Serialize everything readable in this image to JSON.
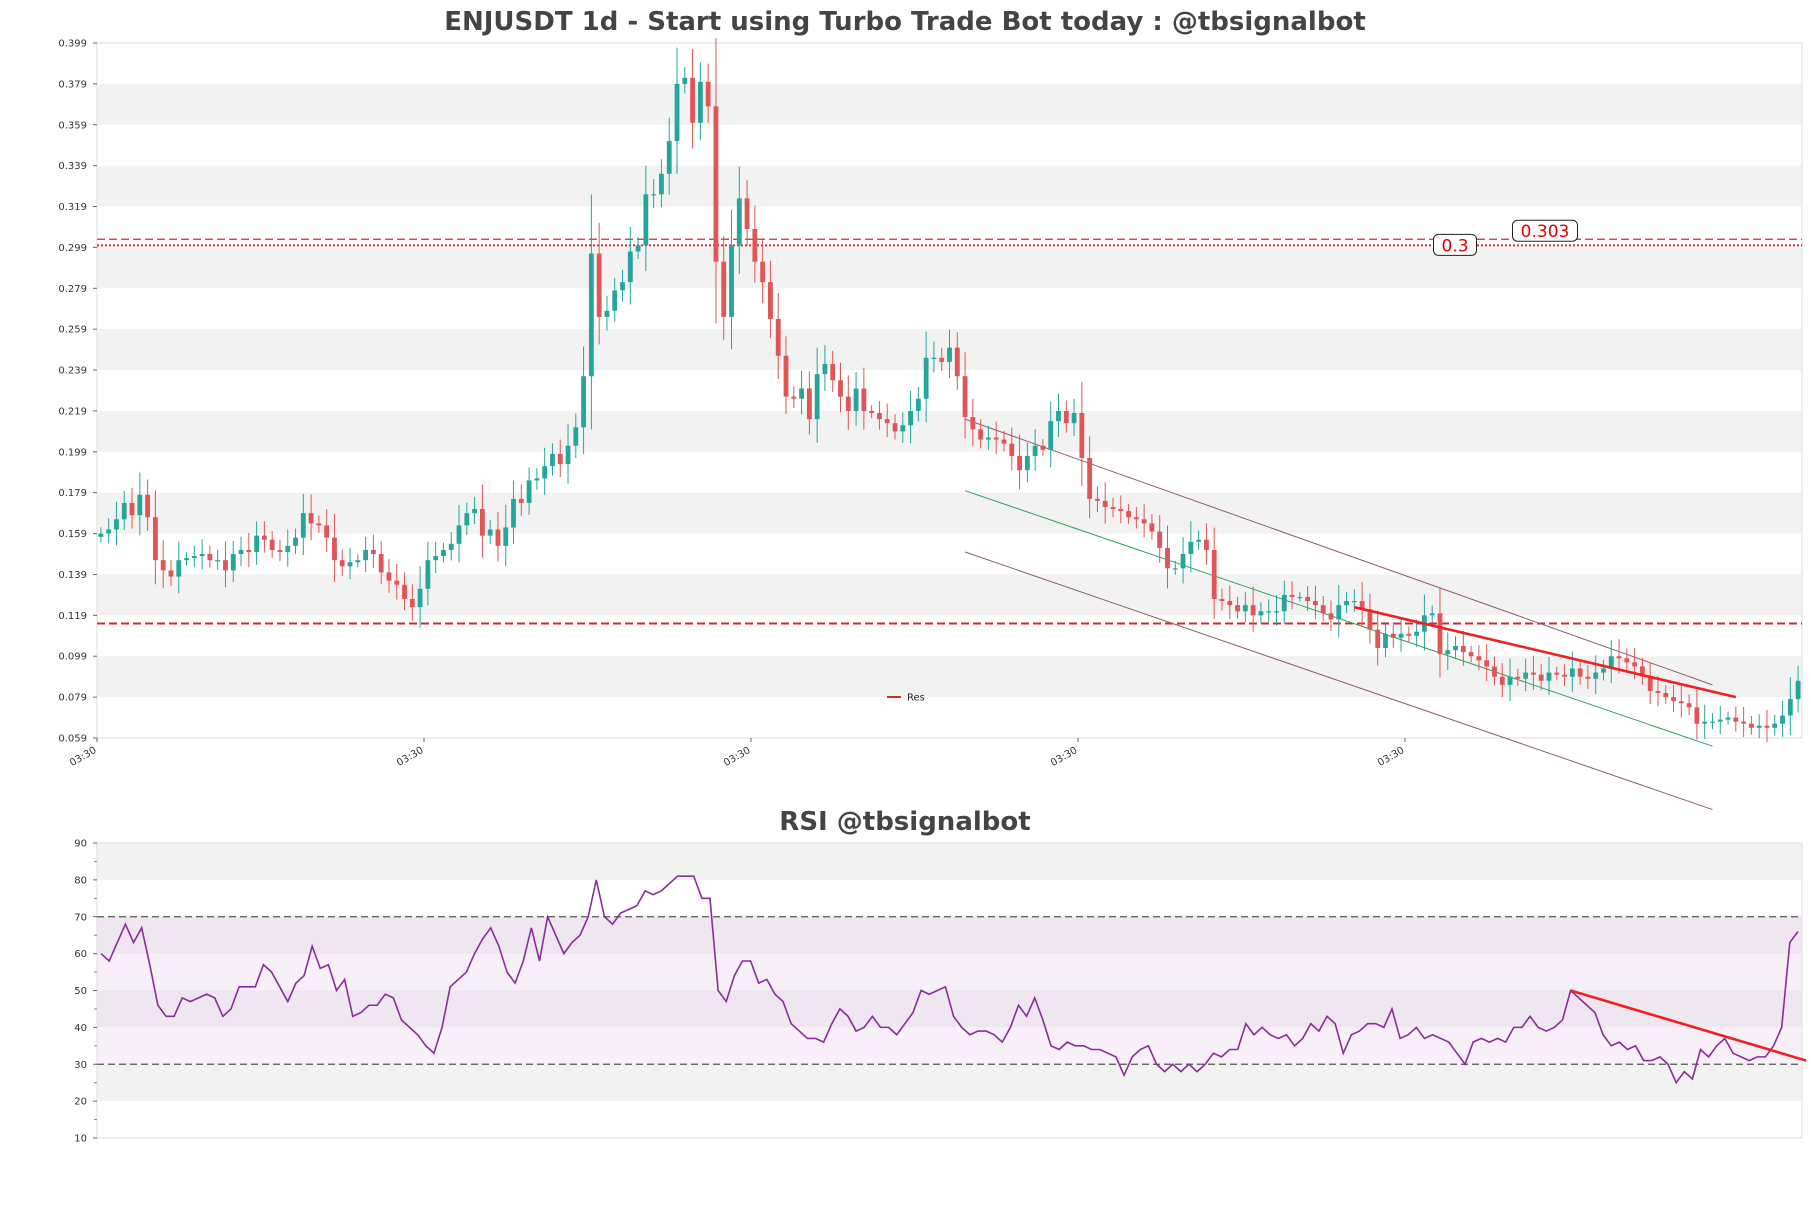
{
  "colors": {
    "up": "#26a69a",
    "down": "#e05555",
    "level": "#d62728",
    "channel": "#8c5f6e",
    "midline": "#2ca25f",
    "rsi": "#8a2c9c",
    "trend": "#ee2222",
    "band": "#f2f2f2"
  },
  "chart_data": [
    {
      "type": "candlestick",
      "title": "ENJUSDT 1d - Start using Turbo Trade Bot today : @tbsignalbot",
      "y_ticks": [
        "0.399",
        "0.379",
        "0.359",
        "0.339",
        "0.319",
        "0.299",
        "0.279",
        "0.259",
        "0.239",
        "0.219",
        "0.199",
        "0.179",
        "0.159",
        "0.139",
        "0.119",
        "0.099",
        "0.079",
        "0.059"
      ],
      "ylim": [
        0.059,
        0.399
      ],
      "x_tick_labels": [
        "03:30",
        "03:30",
        "03:30",
        "03:30",
        "03:30"
      ],
      "x_tick_positions": [
        0,
        42,
        84,
        126,
        168
      ],
      "bars": 211,
      "closes": [
        0.159,
        0.161,
        0.166,
        0.174,
        0.168,
        0.178,
        0.167,
        0.146,
        0.141,
        0.138,
        0.146,
        0.147,
        0.148,
        0.149,
        0.146,
        0.146,
        0.141,
        0.149,
        0.151,
        0.15,
        0.158,
        0.156,
        0.151,
        0.15,
        0.153,
        0.157,
        0.169,
        0.164,
        0.163,
        0.157,
        0.146,
        0.143,
        0.145,
        0.146,
        0.151,
        0.149,
        0.14,
        0.136,
        0.134,
        0.127,
        0.123,
        0.132,
        0.146,
        0.148,
        0.151,
        0.154,
        0.163,
        0.169,
        0.171,
        0.158,
        0.161,
        0.153,
        0.162,
        0.176,
        0.174,
        0.185,
        0.186,
        0.192,
        0.198,
        0.193,
        0.202,
        0.211,
        0.236,
        0.296,
        0.265,
        0.268,
        0.278,
        0.282,
        0.297,
        0.3,
        0.325,
        0.325,
        0.335,
        0.351,
        0.379,
        0.382,
        0.36,
        0.38,
        0.368,
        0.292,
        0.265,
        0.3,
        0.323,
        0.308,
        0.292,
        0.282,
        0.264,
        0.246,
        0.226,
        0.225,
        0.23,
        0.215,
        0.237,
        0.242,
        0.234,
        0.226,
        0.219,
        0.23,
        0.219,
        0.218,
        0.215,
        0.213,
        0.209,
        0.212,
        0.219,
        0.225,
        0.245,
        0.245,
        0.243,
        0.25,
        0.236,
        0.216,
        0.21,
        0.205,
        0.206,
        0.205,
        0.203,
        0.197,
        0.19,
        0.197,
        0.202,
        0.2,
        0.214,
        0.219,
        0.213,
        0.218,
        0.196,
        0.176,
        0.175,
        0.172,
        0.171,
        0.17,
        0.167,
        0.166,
        0.164,
        0.16,
        0.152,
        0.142,
        0.142,
        0.149,
        0.155,
        0.156,
        0.151,
        0.127,
        0.126,
        0.124,
        0.121,
        0.124,
        0.119,
        0.121,
        0.121,
        0.121,
        0.129,
        0.128,
        0.128,
        0.126,
        0.124,
        0.12,
        0.117,
        0.124,
        0.126,
        0.126,
        0.122,
        0.112,
        0.103,
        0.11,
        0.108,
        0.11,
        0.109,
        0.111,
        0.119,
        0.12,
        0.1,
        0.102,
        0.104,
        0.101,
        0.099,
        0.097,
        0.094,
        0.089,
        0.085,
        0.089,
        0.088,
        0.091,
        0.09,
        0.087,
        0.091,
        0.09,
        0.089,
        0.093,
        0.089,
        0.088,
        0.091,
        0.093,
        0.099,
        0.098,
        0.096,
        0.094,
        0.089,
        0.082,
        0.081,
        0.079,
        0.077,
        0.076,
        0.074,
        0.066,
        0.067,
        0.067,
        0.068,
        0.069,
        0.067,
        0.066,
        0.064,
        0.065,
        0.064,
        0.066,
        0.07,
        0.078,
        0.087
      ],
      "levels": [
        {
          "value": 0.3,
          "label": "0.3",
          "style": "dotted"
        },
        {
          "value": 0.303,
          "label": "0.303",
          "style": "dashed"
        },
        {
          "value": 0.115,
          "label": "",
          "style": "dashed"
        }
      ],
      "channel": {
        "start_bar": 111,
        "end_bar": 207,
        "upper": [
          0.215,
          0.085
        ],
        "mid": [
          0.18,
          0.055
        ],
        "lower": [
          0.15,
          0.024
        ]
      },
      "res_line": {
        "start_bar": 161,
        "end_bar": 210,
        "values": [
          0.123,
          0.079
        ]
      },
      "legend": [
        {
          "name": "Res",
          "position": "bottom-center"
        }
      ],
      "grid": "alternating horizontal bands"
    },
    {
      "type": "line",
      "title": "RSI @tbsignalbot",
      "y_ticks": [
        "90",
        "80",
        "70",
        "60",
        "50",
        "40",
        "30",
        "20",
        "10"
      ],
      "ylim": [
        10,
        90
      ],
      "overbought": 70,
      "oversold": 30,
      "values": [
        60,
        58,
        63,
        68,
        63,
        67,
        57,
        46,
        43,
        43,
        48,
        47,
        48,
        49,
        48,
        43,
        45,
        51,
        51,
        51,
        57,
        55,
        51,
        47,
        52,
        54,
        62,
        56,
        57,
        50,
        53,
        43,
        44,
        46,
        46,
        49,
        48,
        42,
        40,
        38,
        35,
        33,
        40,
        51,
        53,
        55,
        60,
        64,
        67,
        62,
        55,
        52,
        58,
        67,
        58,
        70,
        65,
        60,
        63,
        65,
        70,
        80,
        70,
        68,
        71,
        72,
        73,
        77,
        76,
        77,
        79,
        81,
        81,
        81,
        75,
        75,
        50,
        47,
        54,
        58,
        58,
        52,
        53,
        49,
        47,
        41,
        39,
        37,
        37,
        36,
        41,
        45,
        43,
        39,
        40,
        43,
        40,
        40,
        38,
        41,
        44,
        50,
        49,
        50,
        51,
        43,
        40,
        38,
        39,
        39,
        38,
        36,
        40,
        46,
        43,
        48,
        42,
        35,
        34,
        36,
        35,
        35,
        34,
        34,
        33,
        32,
        27,
        32,
        34,
        35,
        30,
        28,
        30,
        28,
        30,
        28,
        30,
        33,
        32,
        34,
        34,
        41,
        38,
        40,
        38,
        37,
        38,
        35,
        37,
        41,
        39,
        43,
        41,
        33,
        38,
        39,
        41,
        41,
        40,
        45,
        37,
        38,
        40,
        37,
        38,
        37,
        36,
        33,
        30,
        36,
        37,
        36,
        37,
        36,
        40,
        40,
        43,
        40,
        39,
        40,
        42,
        50,
        48,
        46,
        44,
        38,
        35,
        36,
        34,
        35,
        31,
        31,
        32,
        30,
        25,
        28,
        26,
        34,
        32,
        35,
        37,
        33,
        32,
        31,
        32,
        32,
        35,
        40,
        63,
        66
      ],
      "trendline": {
        "start_bar": 181,
        "end_bar": 210,
        "values": [
          50,
          31
        ]
      },
      "grid": "alternating horizontal bands"
    }
  ]
}
